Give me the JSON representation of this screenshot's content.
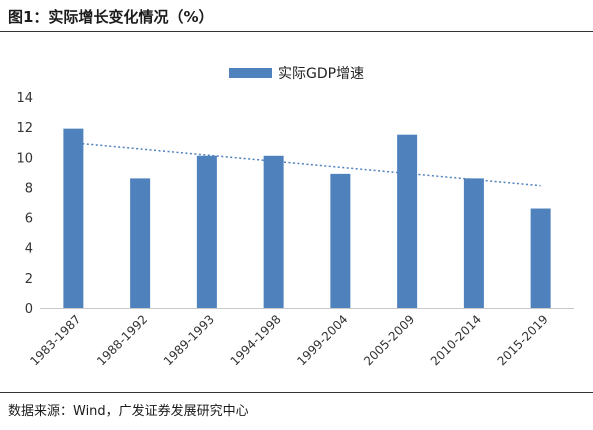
{
  "figure_title": "图1：实际增长变化情况（%）",
  "source_note": "数据来源：Wind，广发证券发展研究中心",
  "chart_data": {
    "type": "bar",
    "categories": [
      "1983-1987",
      "1988-1992",
      "1989-1993",
      "1994-1998",
      "1999-2004",
      "2005-2009",
      "2010-2014",
      "2015-2019"
    ],
    "series": [
      {
        "name": "实际GDP增速",
        "values": [
          11.9,
          8.6,
          10.1,
          10.1,
          8.9,
          11.5,
          8.6,
          6.6
        ],
        "color": "#4f81bd"
      }
    ],
    "trendline": {
      "type": "linear",
      "style": "dotted",
      "color": "#4f81bd"
    },
    "ylim": [
      0,
      14
    ],
    "yticks": [
      0,
      2,
      4,
      6,
      8,
      10,
      12,
      14
    ],
    "xlabel": "",
    "ylabel": "",
    "grid": false,
    "legend_position": "top-center"
  }
}
